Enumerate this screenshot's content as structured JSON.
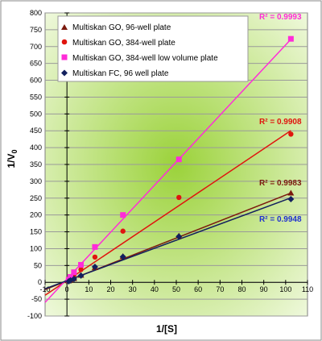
{
  "chart_data": {
    "type": "scatter",
    "xlabel": "1/[S]",
    "ylabel": "1/V",
    "ylabel_subscript": "0",
    "xlim": [
      -10,
      110
    ],
    "ylim": [
      -100,
      800
    ],
    "xticks": [
      -10,
      0,
      10,
      20,
      30,
      40,
      50,
      60,
      70,
      80,
      90,
      100,
      110
    ],
    "yticks": [
      -100,
      -50,
      0,
      50,
      100,
      150,
      200,
      250,
      300,
      350,
      400,
      450,
      500,
      550,
      600,
      650,
      700,
      750,
      800
    ],
    "grid": "horizontal",
    "legend_position": "top-left",
    "colors": {
      "plot_background_center": "#9bd23a",
      "plot_background_edge": "#f4fbe6",
      "gridline": "#9a9a9a",
      "frame": "#7f7f7f"
    },
    "series": [
      {
        "name": "Multiskan GO, 96-well plate",
        "marker": "triangle",
        "color": "#7b1a0e",
        "x": [
          0.8,
          1.6,
          3.2,
          6.4,
          12.8,
          25.6,
          51.2,
          102.4
        ],
        "y": [
          4,
          7,
          11,
          21,
          44,
          77,
          138,
          265
        ],
        "fit": {
          "r2_label": "R² = 0.9983",
          "x_start": -10,
          "slope": 2.55,
          "intercept": 4
        }
      },
      {
        "name": "Multiskan GO, 384-well plate",
        "marker": "circle",
        "color": "#e0140e",
        "x": [
          0.8,
          1.6,
          3.2,
          6.4,
          12.8,
          25.6,
          51.2,
          102.4
        ],
        "y": [
          5,
          12,
          22,
          38,
          75,
          152,
          252,
          440
        ],
        "fit": {
          "r2_label": "R² = 0.9908",
          "x_start": -10,
          "slope": 4.35,
          "intercept": 5
        }
      },
      {
        "name": "Multiskan GO, 384-well low volume plate",
        "marker": "square",
        "color": "#ff2cd8",
        "x": [
          0.8,
          1.6,
          3.2,
          6.4,
          12.8,
          25.6,
          51.2,
          102.4
        ],
        "y": [
          8,
          16,
          30,
          52,
          105,
          200,
          365,
          723
        ],
        "fit": {
          "r2_label": "R² = 0.9993",
          "x_start": -10,
          "slope": 6.95,
          "intercept": 10
        }
      },
      {
        "name": "Multiskan FC, 96 well plate",
        "marker": "diamond",
        "color": "#13205e",
        "x": [
          0.8,
          1.6,
          3.2,
          6.4,
          12.8,
          25.6,
          51.2,
          102.4
        ],
        "y": [
          3,
          6,
          10,
          20,
          46,
          76,
          136,
          247
        ],
        "fit": {
          "r2_label": "R² = 0.9948",
          "x_start": -10,
          "slope": 2.4,
          "intercept": 5
        }
      }
    ],
    "r2_label_colors": [
      "#7b1a0e",
      "#e0140e",
      "#ff2cd8",
      "#1f2fd0"
    ]
  }
}
